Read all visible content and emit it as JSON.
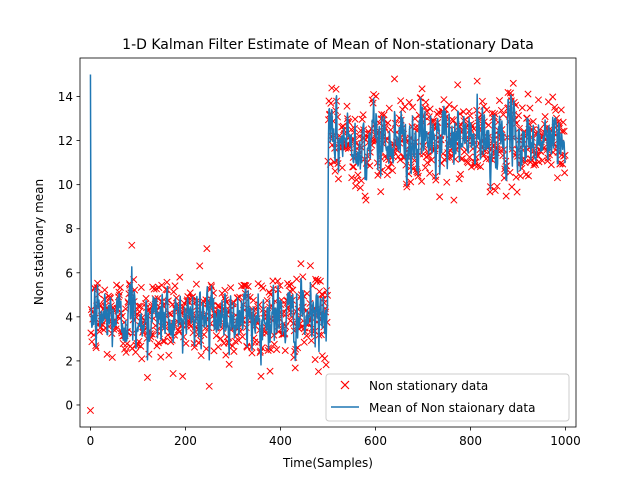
{
  "chart_data": {
    "type": "scatter+line",
    "title": "1-D Kalman Filter Estimate of Mean of Non-stationary Data",
    "xlabel": "Time(Samples)",
    "ylabel": "Non stationary mean",
    "xlim": [
      -22,
      1022
    ],
    "ylim": [
      -1.0,
      15.75
    ],
    "xticks": [
      0,
      200,
      400,
      600,
      800,
      1000
    ],
    "yticks": [
      0,
      2,
      4,
      6,
      8,
      10,
      12,
      14
    ],
    "xtick_labels": [
      "0",
      "200",
      "400",
      "600",
      "800",
      "1000"
    ],
    "ytick_labels": [
      "0",
      "2",
      "4",
      "6",
      "8",
      "10",
      "12",
      "14"
    ],
    "n_samples": 1000,
    "change_point": 500,
    "segments": [
      {
        "start": 0,
        "end": 499,
        "true_mean": 4,
        "noise_std": 1.0
      },
      {
        "start": 500,
        "end": 999,
        "true_mean": 12,
        "noise_std": 1.0
      }
    ],
    "estimate_initial_value": 15,
    "outliers": [
      {
        "x": 0,
        "y": -0.25
      },
      {
        "x": 87,
        "y": 7.25
      },
      {
        "x": 245,
        "y": 7.1
      },
      {
        "x": 120,
        "y": 1.25
      },
      {
        "x": 250,
        "y": 0.85
      },
      {
        "x": 580,
        "y": 9.3
      },
      {
        "x": 735,
        "y": 9.45
      },
      {
        "x": 640,
        "y": 14.8
      },
      {
        "x": 890,
        "y": 14.6
      }
    ],
    "series": [
      {
        "name": "Non stationary data",
        "style": "marker-x",
        "color": "#ff0000"
      },
      {
        "name": "Mean of Non staionary data",
        "style": "line",
        "color": "#1f77b4"
      }
    ],
    "legend": {
      "position": "lower-right"
    }
  }
}
